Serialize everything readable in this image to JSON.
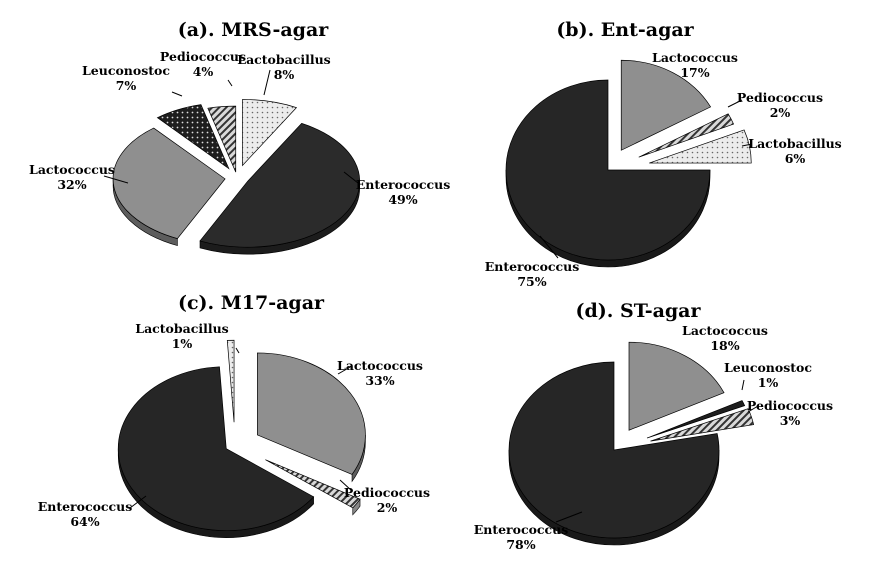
{
  "chart_data": [
    {
      "type": "pie",
      "title": "(a). MRS-agar",
      "slices": [
        {
          "name": "Lactobacillus",
          "value": 8,
          "label": "8%",
          "color": "#ebebeb",
          "pattern": "dots"
        },
        {
          "name": "Enterococcus",
          "value": 49,
          "label": "49%",
          "color": "#2b2b2b",
          "pattern": "solid"
        },
        {
          "name": "Lactococcus",
          "value": 32,
          "label": "32%",
          "color": "#8f8f8f",
          "pattern": "solid"
        },
        {
          "name": "Leuconostoc",
          "value": 7,
          "label": "7%",
          "color": "#1e1e1e",
          "pattern": "whitedots"
        },
        {
          "name": "Pediococcus",
          "value": 4,
          "label": "4%",
          "color": "#bdbdbd",
          "pattern": "hatch"
        }
      ]
    },
    {
      "type": "pie",
      "title": "(b). Ent-agar",
      "slices": [
        {
          "name": "Lactococcus",
          "value": 17,
          "label": "17%",
          "color": "#8f8f8f",
          "pattern": "solid"
        },
        {
          "name": "Pediococcus",
          "value": 2,
          "label": "2%",
          "color": "#cfcfcf",
          "pattern": "hatch"
        },
        {
          "name": "Lactobacillus",
          "value": 6,
          "label": "6%",
          "color": "#ebebeb",
          "pattern": "dots"
        },
        {
          "name": "Enterococcus",
          "value": 75,
          "label": "75%",
          "color": "#262626",
          "pattern": "solid"
        }
      ]
    },
    {
      "type": "pie",
      "title": "(c). M17-agar",
      "slices": [
        {
          "name": "Lactococcus",
          "value": 33,
          "label": "33%",
          "color": "#8f8f8f",
          "pattern": "solid"
        },
        {
          "name": "Pediococcus",
          "value": 2,
          "label": "2%",
          "color": "#cfcfcf",
          "pattern": "hatch"
        },
        {
          "name": "Enterococcus",
          "value": 64,
          "label": "64%",
          "color": "#262626",
          "pattern": "solid"
        },
        {
          "name": "Lactobacillus",
          "value": 1,
          "label": "1%",
          "color": "#ebebeb",
          "pattern": "dots"
        }
      ]
    },
    {
      "type": "pie",
      "title": "(d). ST-agar",
      "slices": [
        {
          "name": "Lactococcus",
          "value": 18,
          "label": "18%",
          "color": "#8f8f8f",
          "pattern": "solid"
        },
        {
          "name": "Leuconostoc",
          "value": 1,
          "label": "1%",
          "color": "#1e1e1e",
          "pattern": "solid"
        },
        {
          "name": "Pediococcus",
          "value": 3,
          "label": "3%",
          "color": "#cfcfcf",
          "pattern": "hatch"
        },
        {
          "name": "Enterococcus",
          "value": 78,
          "label": "78%",
          "color": "#262626",
          "pattern": "solid"
        }
      ]
    }
  ]
}
